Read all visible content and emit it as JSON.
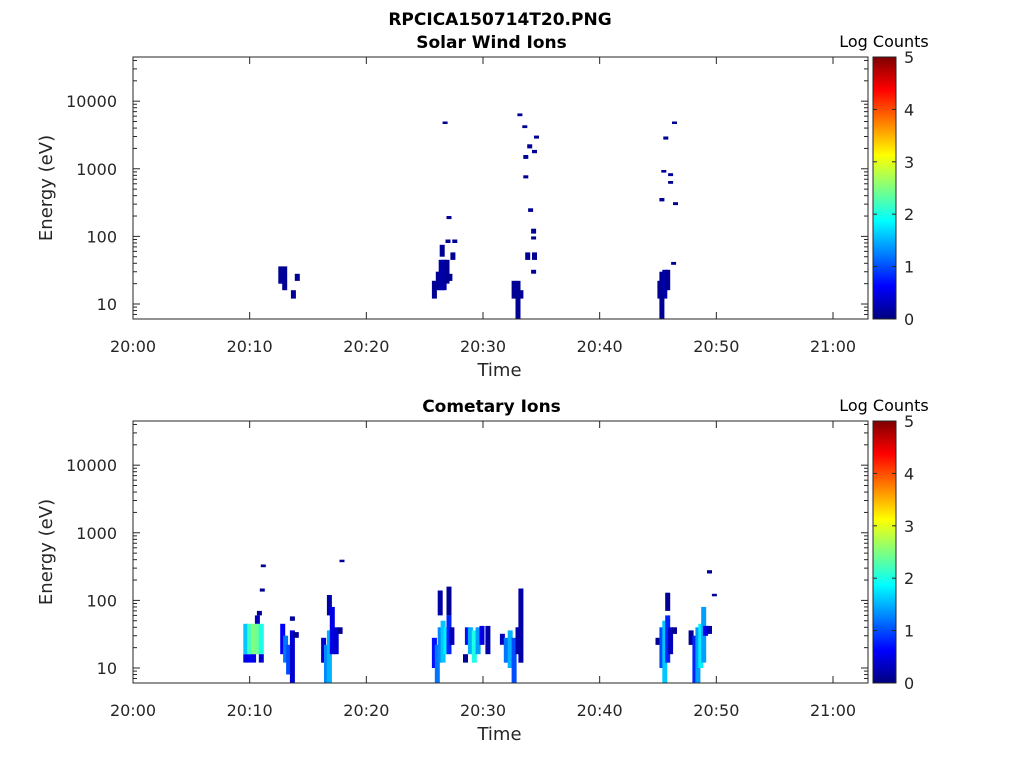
{
  "figure_title": "RPCICA150714T20.PNG",
  "chart_data": [
    {
      "type": "heatmap",
      "title": "Solar Wind Ions",
      "xlabel": "Time",
      "ylabel": "Energy (eV)",
      "x_ticks": [
        "20:00",
        "20:10",
        "20:20",
        "20:30",
        "20:40",
        "20:50",
        "21:00"
      ],
      "x_range": [
        "20:00",
        "21:03"
      ],
      "y_scale": "log",
      "y_ticks": [
        "10",
        "100",
        "1000",
        "10000"
      ],
      "y_range": [
        6,
        45000
      ],
      "colorbar": {
        "label": "Log Counts",
        "range": [
          0,
          5
        ],
        "ticks": [
          "0",
          "1",
          "2",
          "3",
          "4",
          "5"
        ],
        "colormap": "jet"
      },
      "cells": [
        {
          "t": "20:12:40",
          "e": [
            20,
            36
          ],
          "v": 0.1
        },
        {
          "t": "20:13:00",
          "e": [
            16,
            36
          ],
          "v": 0.1
        },
        {
          "t": "20:13:45",
          "e": [
            12,
            16
          ],
          "v": 0.1
        },
        {
          "t": "20:14:05",
          "e": [
            22,
            28
          ],
          "v": 0.1
        },
        {
          "t": "20:25:50",
          "e": [
            12,
            22
          ],
          "v": 0.1
        },
        {
          "t": "20:26:10",
          "e": [
            16,
            30
          ],
          "v": 0.1
        },
        {
          "t": "20:26:25",
          "e": [
            16,
            45
          ],
          "v": 0.2
        },
        {
          "t": "20:26:40",
          "e": [
            16,
            45
          ],
          "v": 0.2
        },
        {
          "t": "20:26:30",
          "e": [
            50,
            75
          ],
          "v": 0.1
        },
        {
          "t": "20:26:55",
          "e": [
            20,
            45
          ],
          "v": 0.1
        },
        {
          "t": "20:27:10",
          "e": [
            22,
            28
          ],
          "v": 0.1
        },
        {
          "t": "20:27:25",
          "e": [
            45,
            58
          ],
          "v": 0.1
        },
        {
          "t": "20:27:00",
          "e": [
            80,
            90
          ],
          "v": 0.1
        },
        {
          "t": "20:27:35",
          "e": [
            80,
            90
          ],
          "v": 0.1
        },
        {
          "t": "20:27:05",
          "e": [
            180,
            200
          ],
          "v": 0.1
        },
        {
          "t": "20:26:45",
          "e": [
            4600,
            5000
          ],
          "v": 0.1
        },
        {
          "t": "20:32:40",
          "e": [
            12,
            22
          ],
          "v": 0.1
        },
        {
          "t": "20:33:00",
          "e": [
            6,
            22
          ],
          "v": 0.1
        },
        {
          "t": "20:33:15",
          "e": [
            12,
            16
          ],
          "v": 0.1
        },
        {
          "t": "20:33:50",
          "e": [
            45,
            58
          ],
          "v": 0.1
        },
        {
          "t": "20:34:25",
          "e": [
            45,
            58
          ],
          "v": 0.1
        },
        {
          "t": "20:34:20",
          "e": [
            28,
            32
          ],
          "v": 0.1
        },
        {
          "t": "20:34:20",
          "e": [
            110,
            130
          ],
          "v": 0.1
        },
        {
          "t": "20:34:20",
          "e": [
            90,
            100
          ],
          "v": 0.1
        },
        {
          "t": "20:34:05",
          "e": [
            230,
            260
          ],
          "v": 0.1
        },
        {
          "t": "20:33:40",
          "e": [
            720,
            800
          ],
          "v": 0.1
        },
        {
          "t": "20:33:40",
          "e": [
            1400,
            1600
          ],
          "v": 0.1
        },
        {
          "t": "20:34:00",
          "e": [
            2000,
            2300
          ],
          "v": 0.1
        },
        {
          "t": "20:34:25",
          "e": [
            1700,
            1900
          ],
          "v": 0.1
        },
        {
          "t": "20:34:35",
          "e": [
            2800,
            3100
          ],
          "v": 0.1
        },
        {
          "t": "20:33:10",
          "e": [
            6000,
            6600
          ],
          "v": 0.1
        },
        {
          "t": "20:33:35",
          "e": [
            4000,
            4400
          ],
          "v": 0.1
        },
        {
          "t": "20:45:10",
          "e": [
            12,
            22
          ],
          "v": 0.1
        },
        {
          "t": "20:45:20",
          "e": [
            6,
            30
          ],
          "v": 0.1
        },
        {
          "t": "20:45:35",
          "e": [
            12,
            32
          ],
          "v": 0.2
        },
        {
          "t": "20:45:50",
          "e": [
            16,
            32
          ],
          "v": 0.1
        },
        {
          "t": "20:46:20",
          "e": [
            38,
            42
          ],
          "v": 0.1
        },
        {
          "t": "20:45:20",
          "e": [
            330,
            370
          ],
          "v": 0.1
        },
        {
          "t": "20:45:30",
          "e": [
            880,
            960
          ],
          "v": 0.1
        },
        {
          "t": "20:46:05",
          "e": [
            780,
            860
          ],
          "v": 0.1
        },
        {
          "t": "20:46:05",
          "e": [
            600,
            660
          ],
          "v": 0.1
        },
        {
          "t": "20:46:30",
          "e": [
            290,
            320
          ],
          "v": 0.1
        },
        {
          "t": "20:45:40",
          "e": [
            2700,
            3000
          ],
          "v": 0.1
        },
        {
          "t": "20:46:25",
          "e": [
            4600,
            5000
          ],
          "v": 0.1
        }
      ]
    },
    {
      "type": "heatmap",
      "title": "Cometary Ions",
      "xlabel": "Time",
      "ylabel": "Energy (eV)",
      "x_ticks": [
        "20:00",
        "20:10",
        "20:20",
        "20:30",
        "20:40",
        "20:50",
        "21:00"
      ],
      "x_range": [
        "20:00",
        "21:03"
      ],
      "y_scale": "log",
      "y_ticks": [
        "10",
        "100",
        "1000",
        "10000"
      ],
      "y_range": [
        6,
        45000
      ],
      "colorbar": {
        "label": "Log Counts",
        "range": [
          0,
          5
        ],
        "ticks": [
          "0",
          "1",
          "2",
          "3",
          "4",
          "5"
        ],
        "colormap": "jet"
      },
      "cells": [
        {
          "t": "20:09:40",
          "e": [
            12,
            16
          ],
          "v": 0.5
        },
        {
          "t": "20:09:40",
          "e": [
            16,
            45
          ],
          "v": 1.6
        },
        {
          "t": "20:10:00",
          "e": [
            12,
            16
          ],
          "v": 0.6
        },
        {
          "t": "20:10:00",
          "e": [
            16,
            45
          ],
          "v": 2.2
        },
        {
          "t": "20:10:20",
          "e": [
            16,
            45
          ],
          "v": 2.5
        },
        {
          "t": "20:10:20",
          "e": [
            12,
            16
          ],
          "v": 0.5
        },
        {
          "t": "20:10:40",
          "e": [
            16,
            45
          ],
          "v": 2.4
        },
        {
          "t": "20:10:40",
          "e": [
            45,
            60
          ],
          "v": 0.3
        },
        {
          "t": "20:11:00",
          "e": [
            16,
            45
          ],
          "v": 2.0
        },
        {
          "t": "20:11:00",
          "e": [
            12,
            16
          ],
          "v": 0.4
        },
        {
          "t": "20:10:50",
          "e": [
            60,
            70
          ],
          "v": 0.1
        },
        {
          "t": "20:11:10",
          "e": [
            310,
            340
          ],
          "v": 0.1
        },
        {
          "t": "20:11:05",
          "e": [
            135,
            150
          ],
          "v": 0.1
        },
        {
          "t": "20:12:50",
          "e": [
            16,
            45
          ],
          "v": 0.6
        },
        {
          "t": "20:13:05",
          "e": [
            12,
            30
          ],
          "v": 1.2
        },
        {
          "t": "20:13:20",
          "e": [
            8,
            22
          ],
          "v": 1.0
        },
        {
          "t": "20:13:40",
          "e": [
            6,
            36
          ],
          "v": 0.4
        },
        {
          "t": "20:13:40",
          "e": [
            50,
            58
          ],
          "v": 0.1
        },
        {
          "t": "20:14:00",
          "e": [
            28,
            34
          ],
          "v": 0.1
        },
        {
          "t": "20:16:20",
          "e": [
            12,
            28
          ],
          "v": 0.4
        },
        {
          "t": "20:16:35",
          "e": [
            6,
            22
          ],
          "v": 1.3
        },
        {
          "t": "20:16:50",
          "e": [
            6,
            36
          ],
          "v": 1.5
        },
        {
          "t": "20:16:50",
          "e": [
            60,
            120
          ],
          "v": 0.2
        },
        {
          "t": "20:17:05",
          "e": [
            16,
            80
          ],
          "v": 0.5
        },
        {
          "t": "20:17:25",
          "e": [
            16,
            40
          ],
          "v": 0.4
        },
        {
          "t": "20:17:45",
          "e": [
            32,
            40
          ],
          "v": 0.1
        },
        {
          "t": "20:17:55",
          "e": [
            370,
            400
          ],
          "v": 0.1
        },
        {
          "t": "20:25:50",
          "e": [
            10,
            28
          ],
          "v": 0.7
        },
        {
          "t": "20:26:05",
          "e": [
            6,
            22
          ],
          "v": 1.2
        },
        {
          "t": "20:26:20",
          "e": [
            12,
            40
          ],
          "v": 1.3
        },
        {
          "t": "20:26:20",
          "e": [
            60,
            140
          ],
          "v": 0.2
        },
        {
          "t": "20:26:35",
          "e": [
            12,
            50
          ],
          "v": 1.6
        },
        {
          "t": "20:26:50",
          "e": [
            16,
            40
          ],
          "v": 1.8
        },
        {
          "t": "20:27:05",
          "e": [
            16,
            60
          ],
          "v": 0.8
        },
        {
          "t": "20:27:05",
          "e": [
            60,
            160
          ],
          "v": 0.1
        },
        {
          "t": "20:27:20",
          "e": [
            22,
            40
          ],
          "v": 0.3
        },
        {
          "t": "20:28:30",
          "e": [
            12,
            16
          ],
          "v": 0.1
        },
        {
          "t": "20:28:40",
          "e": [
            22,
            40
          ],
          "v": 0.7
        },
        {
          "t": "20:28:55",
          "e": [
            16,
            40
          ],
          "v": 1.5
        },
        {
          "t": "20:29:15",
          "e": [
            12,
            36
          ],
          "v": 2.0
        },
        {
          "t": "20:29:35",
          "e": [
            16,
            40
          ],
          "v": 1.4
        },
        {
          "t": "20:29:55",
          "e": [
            22,
            42
          ],
          "v": 0.5
        },
        {
          "t": "20:30:25",
          "e": [
            16,
            42
          ],
          "v": 0.2
        },
        {
          "t": "20:31:40",
          "e": [
            22,
            32
          ],
          "v": 0.3
        },
        {
          "t": "20:32:00",
          "e": [
            12,
            28
          ],
          "v": 1.2
        },
        {
          "t": "20:32:20",
          "e": [
            10,
            36
          ],
          "v": 1.5
        },
        {
          "t": "20:32:40",
          "e": [
            6,
            28
          ],
          "v": 1.0
        },
        {
          "t": "20:33:00",
          "e": [
            16,
            40
          ],
          "v": 0.2
        },
        {
          "t": "20:33:15",
          "e": [
            12,
            150
          ],
          "v": 0.2
        },
        {
          "t": "20:45:00",
          "e": [
            22,
            28
          ],
          "v": 0.1
        },
        {
          "t": "20:45:20",
          "e": [
            10,
            40
          ],
          "v": 1.0
        },
        {
          "t": "20:45:35",
          "e": [
            6,
            50
          ],
          "v": 1.6
        },
        {
          "t": "20:45:50",
          "e": [
            12,
            60
          ],
          "v": 0.8
        },
        {
          "t": "20:45:50",
          "e": [
            70,
            130
          ],
          "v": 0.1
        },
        {
          "t": "20:46:05",
          "e": [
            16,
            40
          ],
          "v": 0.3
        },
        {
          "t": "20:46:25",
          "e": [
            32,
            40
          ],
          "v": 0.1
        },
        {
          "t": "20:47:50",
          "e": [
            22,
            36
          ],
          "v": 0.1
        },
        {
          "t": "20:48:10",
          "e": [
            6,
            30
          ],
          "v": 0.8
        },
        {
          "t": "20:48:25",
          "e": [
            6,
            40
          ],
          "v": 1.4
        },
        {
          "t": "20:48:40",
          "e": [
            10,
            45
          ],
          "v": 1.8
        },
        {
          "t": "20:48:55",
          "e": [
            12,
            80
          ],
          "v": 1.4
        },
        {
          "t": "20:49:05",
          "e": [
            30,
            42
          ],
          "v": 0.5
        },
        {
          "t": "20:49:25",
          "e": [
            32,
            42
          ],
          "v": 0.2
        },
        {
          "t": "20:49:25",
          "e": [
            250,
            280
          ],
          "v": 0.1
        },
        {
          "t": "20:49:50",
          "e": [
            115,
            125
          ],
          "v": 0.1
        }
      ]
    }
  ]
}
